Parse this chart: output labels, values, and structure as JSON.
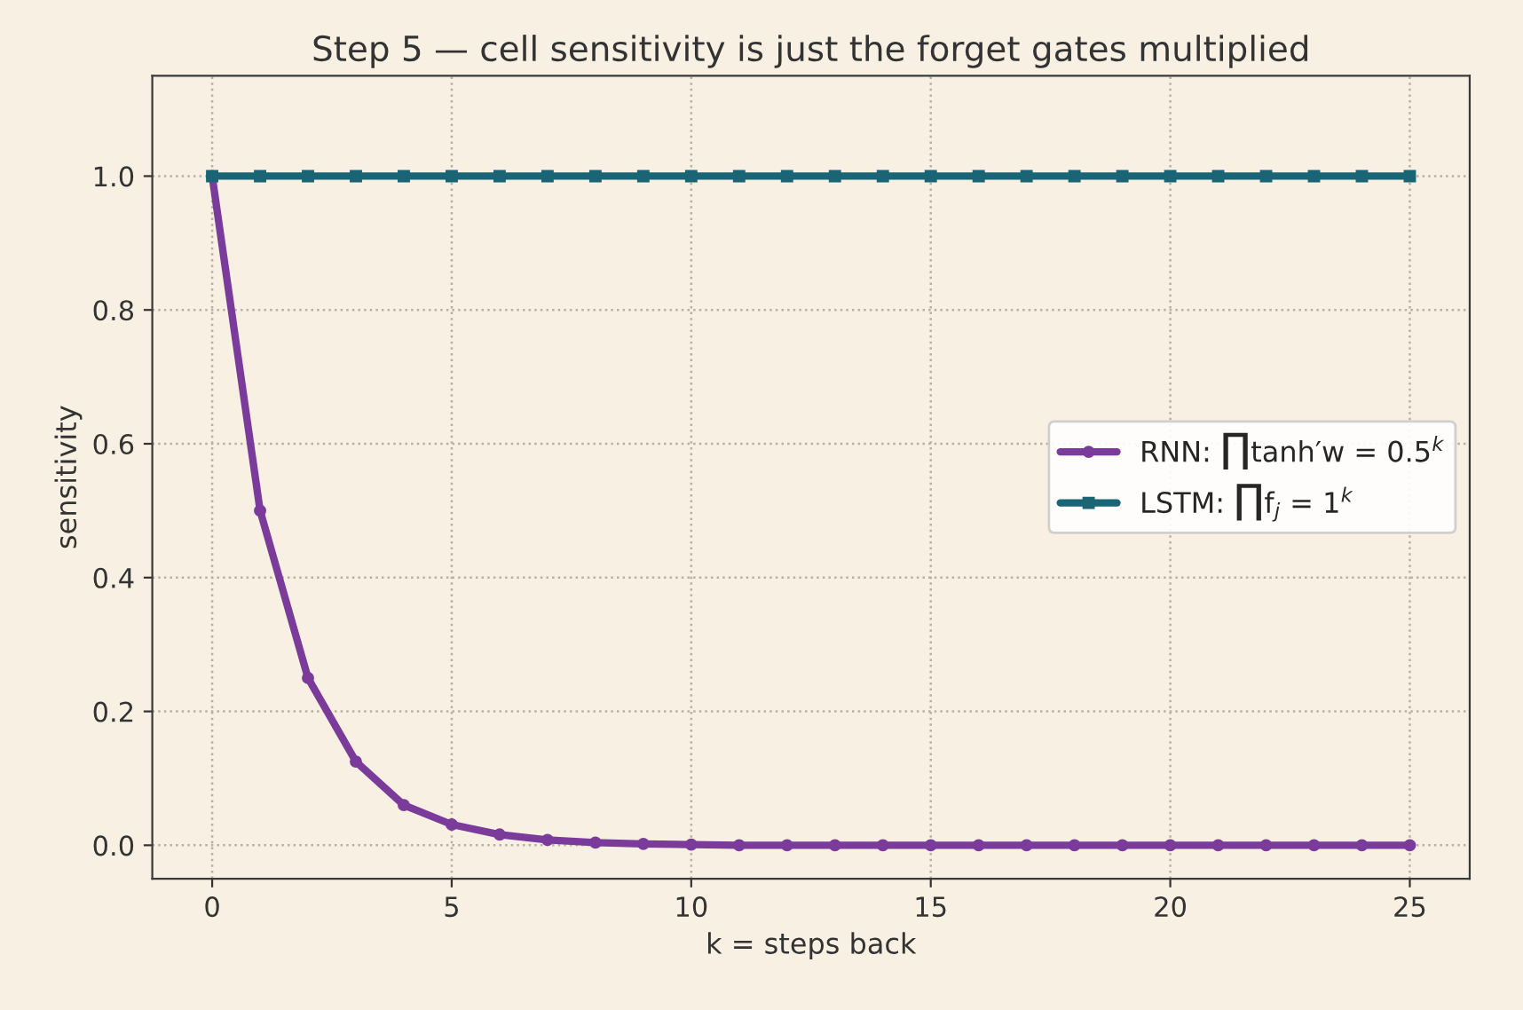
{
  "chart_data": {
    "type": "line",
    "title": "Step 5 — cell sensitivity is just the forget gates multiplied",
    "xlabel": "k = steps back",
    "ylabel": "sensitivity",
    "x": [
      0,
      1,
      2,
      3,
      4,
      5,
      6,
      7,
      8,
      9,
      10,
      11,
      12,
      13,
      14,
      15,
      16,
      17,
      18,
      19,
      20,
      21,
      22,
      23,
      24,
      25
    ],
    "series": [
      {
        "name": "RNN: ∏tanh′w = 0.5$^{k}$",
        "color": "#7b3b9b",
        "marker": "circle",
        "values": [
          1,
          0.5,
          0.25,
          0.125,
          0.06,
          0.031,
          0.016,
          0.008,
          0.004,
          0.002,
          0.001,
          0,
          0,
          0,
          0,
          0,
          0,
          0,
          0,
          0,
          0,
          0,
          0,
          0,
          0,
          0
        ]
      },
      {
        "name": "LSTM: ∏f$_{j}$ = 1$^{k}$",
        "color": "#1a6575",
        "marker": "square",
        "values": [
          1,
          1,
          1,
          1,
          1,
          1,
          1,
          1,
          1,
          1,
          1,
          1,
          1,
          1,
          1,
          1,
          1,
          1,
          1,
          1,
          1,
          1,
          1,
          1,
          1,
          1
        ]
      }
    ],
    "xlim": [
      -1.25,
      26.25
    ],
    "xticks": [
      0,
      5,
      10,
      15,
      20,
      25
    ],
    "ylim": [
      -0.05,
      1.15
    ],
    "yticks": [
      {
        "value": 0,
        "label": "0.0"
      },
      {
        "value": 0.2,
        "label": "0.2"
      },
      {
        "value": 0.4,
        "label": "0.4"
      },
      {
        "value": 0.6,
        "label": "0.6"
      },
      {
        "value": 0.8,
        "label": "0.8"
      },
      {
        "value": 1,
        "label": "1.0"
      }
    ],
    "grid": true,
    "legend": "center right",
    "line_style": "solid"
  }
}
